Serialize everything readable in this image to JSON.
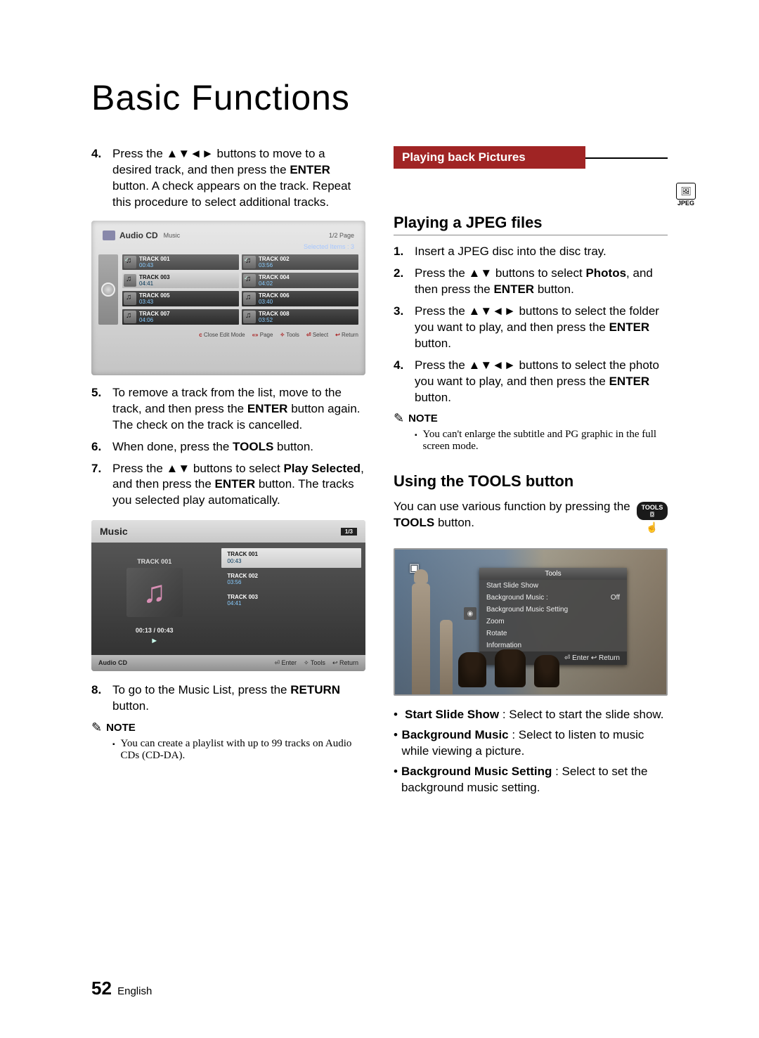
{
  "page_title": "Basic Functions",
  "page_footer": {
    "number": "52",
    "lang": "English"
  },
  "left": {
    "step4": "Press the ▲▼◄► buttons to move to a desired track, and then press the <b>ENTER</b> button. A check appears on the track. Repeat this procedure to select additional tracks.",
    "step5": "To remove a track from the list, move to the track, and then press the <b>ENTER</b> button again.<br>The check on the track is cancelled.",
    "step6": "When done, press the <b>TOOLS</b> button.",
    "step7": "Press the ▲▼ buttons to select <b>Play Selected</b>, and then press the <b>ENTER</b> button. The tracks you selected play automatically.",
    "step8": "To go to the Music List, press the <b>RETURN</b> button.",
    "note_label": "NOTE",
    "note_body": "You can create a playlist with up to 99 tracks on Audio CDs (CD-DA)."
  },
  "shot1": {
    "title": "Audio CD",
    "subtitle": "Music",
    "page_indicator": "1/2 Page",
    "selected_items": "Selected Items : 3",
    "tracks": [
      {
        "name": "TRACK 001",
        "dur": "00:43",
        "checked": true
      },
      {
        "name": "TRACK 002",
        "dur": "03:56",
        "checked": true
      },
      {
        "name": "TRACK 003",
        "dur": "04:41",
        "checked": false,
        "highlight": true
      },
      {
        "name": "TRACK 004",
        "dur": "04:02",
        "checked": true
      },
      {
        "name": "TRACK 005",
        "dur": "03:43",
        "checked": false
      },
      {
        "name": "TRACK 006",
        "dur": "03:40",
        "checked": false
      },
      {
        "name": "TRACK 007",
        "dur": "04:06",
        "checked": false
      },
      {
        "name": "TRACK 008",
        "dur": "03:52",
        "checked": false
      }
    ],
    "footer": [
      "Close Edit Mode",
      "Page",
      "Tools",
      "Select",
      "Return"
    ],
    "footer_icons": [
      "c",
      "«»",
      "✧",
      "⏎",
      "↩"
    ],
    "colors": {
      "bg_top": "#e8e8e8",
      "bg_bottom": "#c4c4c4",
      "track_bg": "#3a3a3a",
      "track_hl": "#d0d0d0",
      "dur_color": "#88ccff"
    }
  },
  "shot2": {
    "header": "Music",
    "counter": "1/3",
    "now_playing": "TRACK 001",
    "timecode": "00:13 / 00:43",
    "rows": [
      {
        "name": "TRACK 001",
        "dur": "00:43",
        "active": true
      },
      {
        "name": "TRACK 002",
        "dur": "03:56",
        "active": false
      },
      {
        "name": "TRACK 003",
        "dur": "04:41",
        "active": false
      }
    ],
    "footer_left": "Audio CD",
    "footer_right": [
      "⏎ Enter",
      "✧ Tools",
      "↩ Return"
    ],
    "colors": {
      "note_color": "#d88fb5",
      "body_bg": "#404040"
    }
  },
  "right": {
    "banner": "Playing back Pictures",
    "jpeg_badge": "JPEG",
    "h_play": "Playing a JPEG files",
    "step1": "Insert a JPEG disc into the disc tray.",
    "step2": "Press the ▲▼ buttons to select <b>Photos</b>, and then press the <b>ENTER</b> button.",
    "step3": "Press the ▲▼◄► buttons to select the folder you want to play, and then press the <b>ENTER</b> button.",
    "step4": "Press the ▲▼◄► buttons to select the photo you want to play, and then press the <b>ENTER</b> button.",
    "note_label": "NOTE",
    "note_body": "You can't enlarge the subtitle and PG graphic in the full screen mode.",
    "h_tools": "Using the TOOLS button",
    "tools_intro": "You can use various function by pressing the <b>TOOLS</b> button.",
    "tools_btn_label": "TOOLS",
    "bullets": [
      "<b>Start Slide Show</b> : Select to start the slide show.",
      "<b>Background Music</b> : Select to listen to music while viewing a picture.",
      "<b>Background Music Setting</b> : Select to set the background music setting."
    ]
  },
  "shot3": {
    "panel_title": "Tools",
    "options": [
      {
        "label": "Start Slide Show",
        "value": ""
      },
      {
        "label": "Background Music    :",
        "value": "Off"
      },
      {
        "label": "Background Music Setting",
        "value": ""
      },
      {
        "label": "Zoom",
        "value": ""
      },
      {
        "label": "Rotate",
        "value": ""
      },
      {
        "label": "Information",
        "value": ""
      }
    ],
    "buttons": "⏎ Enter   ↩ Return",
    "colors": {
      "sky": "#7d95ad",
      "panel_bg": "#4a4a4a"
    }
  }
}
